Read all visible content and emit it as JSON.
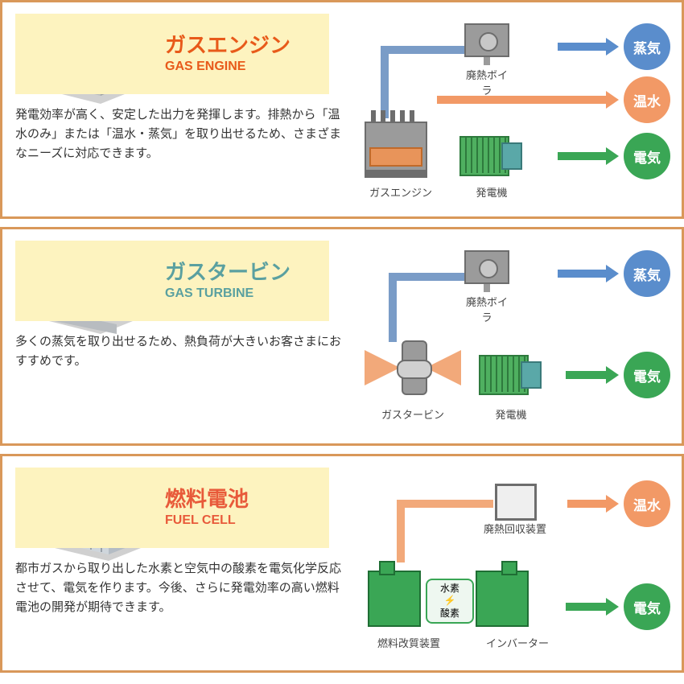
{
  "colors": {
    "panel_border": "#d9985a",
    "title_band_bg": "#fdf3bf",
    "title_orange": "#e85a1a",
    "title_teal": "#5aa0a0",
    "steam": "#5a8dcc",
    "hotwater": "#f29966",
    "electric": "#3aa655",
    "pipe_blue": "#7a9cc7",
    "pipe_orange": "#f2a97a",
    "machine_gray": "#9b9b9b",
    "machine_dark": "#6d6d6d",
    "machine_green": "#4fb060",
    "machine_teal": "#5aa8a8",
    "fuel_red": "#e85a3a",
    "fuel_green": "#3aa655",
    "fc_box": "#dfe3e8",
    "engine_body": "#bfc4c8",
    "shadow": "#d0d0d0"
  },
  "panels": [
    {
      "id": "gas-engine",
      "title_ja": "ガスエンジン",
      "title_en": "GAS ENGINE",
      "title_color_key": "title_orange",
      "desc": "発電効率が高く、安定した出力を発揮します。排熱から「温水のみ」または「温水・蒸気」を取り出せるため、さまざまなニーズに対応できます。",
      "outputs": [
        {
          "label": "蒸気",
          "color_key": "steam"
        },
        {
          "label": "温水",
          "color_key": "hotwater"
        },
        {
          "label": "電気",
          "color_key": "electric"
        }
      ],
      "diag_labels": {
        "boiler": "廃熱ボイラ",
        "left": "ガスエンジン",
        "right": "発電機"
      }
    },
    {
      "id": "gas-turbine",
      "title_ja": "ガスタービン",
      "title_en": "GAS TURBINE",
      "title_color_key": "title_teal",
      "desc": "多くの蒸気を取り出せるため、熱負荷が大きいお客さまにおすすめです。",
      "outputs": [
        {
          "label": "蒸気",
          "color_key": "steam"
        },
        {
          "label": "電気",
          "color_key": "electric"
        }
      ],
      "diag_labels": {
        "boiler": "廃熱ボイラ",
        "left": "ガスタービン",
        "right": "発電機"
      }
    },
    {
      "id": "fuel-cell",
      "title_ja": "燃料電池",
      "title_en": "FUEL CELL",
      "title_color_key": "fuel_red",
      "desc": "都市ガスから取り出した水素と空気中の酸素を電気化学反応させて、電気を作ります。今後、さらに発電効率の高い燃料電池の開発が期待できます。",
      "outputs": [
        {
          "label": "温水",
          "color_key": "hotwater"
        },
        {
          "label": "電気",
          "color_key": "electric"
        }
      ],
      "diag_labels": {
        "boiler": "廃熱回収装置",
        "left": "燃料改質装置",
        "right": "インバーター",
        "h2": "水素",
        "o2": "酸素"
      }
    }
  ]
}
